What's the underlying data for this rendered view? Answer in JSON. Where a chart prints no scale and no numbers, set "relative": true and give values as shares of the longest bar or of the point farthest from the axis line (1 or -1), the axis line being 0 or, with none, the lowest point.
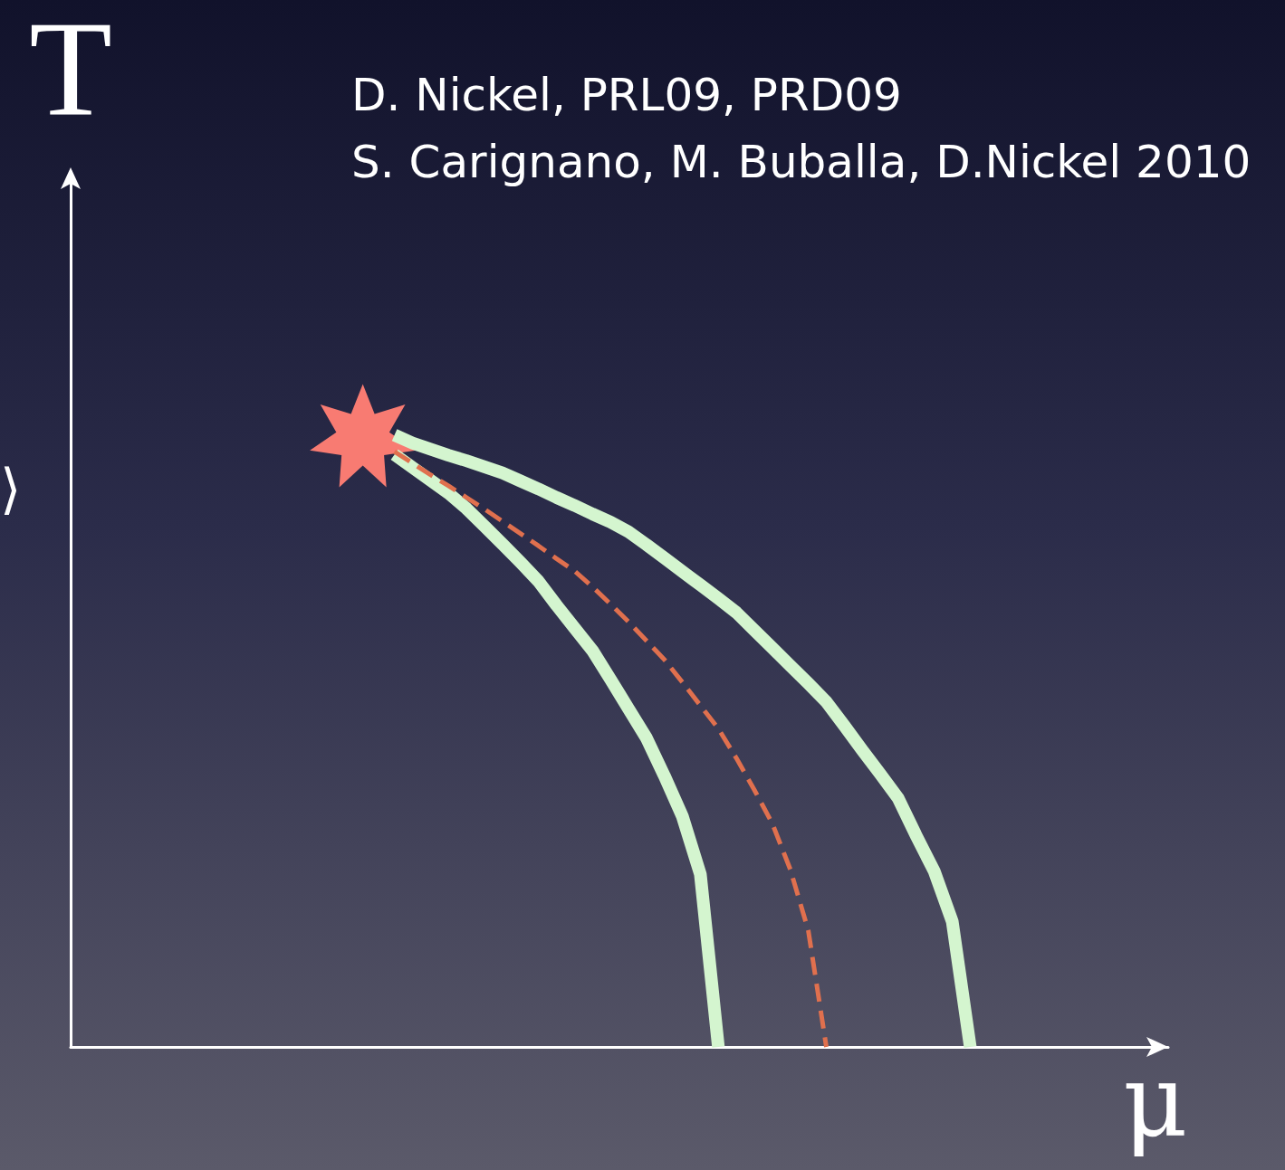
{
  "chart_data": {
    "type": "line",
    "relative": true,
    "xlabel": "μ",
    "ylabel": "T",
    "annotations": [
      "D. Nickel, PRL09, PRD09",
      "S. Carignano, M. Buballa, D.Nickel 2010",
      "⟩"
    ],
    "categories": [
      null,
      null,
      null,
      null,
      null,
      null,
      null,
      null,
      null,
      null,
      null,
      null,
      null,
      null,
      null,
      null,
      null,
      null,
      null,
      null,
      null,
      null,
      null,
      null,
      null,
      null,
      null,
      null,
      null,
      null,
      null,
      null,
      null,
      null,
      null,
      null,
      null,
      null,
      null,
      null,
      null,
      null,
      null,
      null,
      null,
      null,
      null,
      null,
      null,
      null,
      null,
      null,
      null,
      null,
      null,
      null,
      null,
      null,
      null,
      null,
      null,
      null
    ],
    "series": [
      {
        "color": "#d4f5cf",
        "values": [
          null,
          null,
          null,
          null,
          null,
          null,
          null,
          null,
          null,
          null,
          null,
          null,
          null,
          null,
          null,
          null,
          null,
          null,
          0.968,
          0.947,
          0.926,
          0.905,
          0.88,
          0.851,
          0.822,
          0.792,
          0.761,
          0.722,
          0.685,
          0.648,
          0.601,
          0.553,
          0.505,
          0.443,
          0.377,
          0.282,
          0,
          null,
          null,
          null,
          null,
          null,
          null,
          null,
          null,
          null,
          null,
          null,
          null,
          null,
          null,
          null,
          null,
          null,
          null,
          null,
          null,
          null,
          null,
          null,
          null,
          null
        ]
      },
      {
        "color": "#d4f5cf",
        "values": [
          null,
          null,
          null,
          null,
          null,
          null,
          null,
          null,
          null,
          null,
          null,
          null,
          null,
          null,
          null,
          null,
          null,
          null,
          1,
          0.987,
          0.977,
          0.967,
          0.958,
          0.948,
          0.938,
          0.925,
          0.912,
          0.898,
          0.885,
          0.871,
          0.858,
          0.842,
          0.821,
          0.799,
          0.777,
          0.755,
          0.733,
          0.71,
          0.681,
          0.652,
          0.623,
          0.594,
          0.564,
          0.525,
          0.485,
          0.446,
          0.406,
          0.345,
          0.287,
          0.205,
          0,
          null,
          null,
          null,
          null,
          null,
          null,
          null,
          null,
          null,
          null,
          null
        ]
      },
      {
        "color": "#e0704e",
        "line_style": "dashed",
        "values": [
          null,
          null,
          null,
          null,
          null,
          null,
          null,
          null,
          null,
          null,
          null,
          null,
          null,
          null,
          null,
          null,
          null,
          null,
          0.973,
          0.954,
          0.935,
          0.917,
          0.898,
          0.879,
          0.859,
          0.839,
          0.819,
          0.798,
          0.778,
          0.752,
          0.724,
          0.695,
          0.664,
          0.633,
          0.596,
          0.558,
          0.52,
          0.472,
          0.42,
          0.365,
          0.29,
          0.19,
          0,
          null,
          null,
          null,
          null,
          null,
          null,
          null,
          null,
          null,
          null,
          null,
          null,
          null,
          null,
          null,
          null,
          null,
          null,
          null
        ]
      }
    ]
  }
}
